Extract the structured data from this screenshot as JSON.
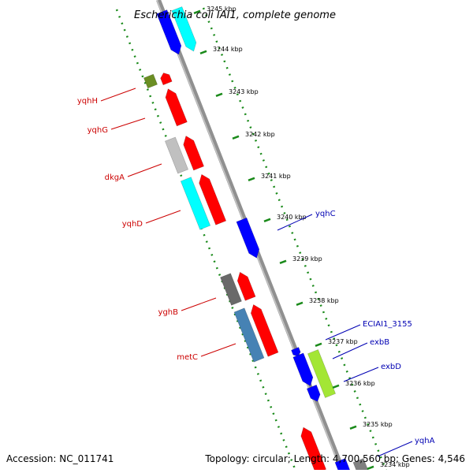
{
  "title": "Escherichia coli IAI1, complete genome",
  "colors": {
    "forward_gene_label": "#cc0000",
    "reverse_gene_label": "#0000b3",
    "tick_ring": "#1a8a1a",
    "backbone": "#808080"
  },
  "footer": {
    "accession": "Accession: NC_011741",
    "topology": "Topology: circular; Length: 4,700,560 bp; Genes: 4,546"
  },
  "ticks": [
    {
      "label": "3245 kbp"
    },
    {
      "label": "3244 kbp"
    },
    {
      "label": "3243 kbp"
    },
    {
      "label": "3242 kbp"
    },
    {
      "label": "3241 kbp"
    },
    {
      "label": "3240 kbp"
    },
    {
      "label": "3239 kbp"
    },
    {
      "label": "3238 kbp"
    },
    {
      "label": "3237 kbp"
    },
    {
      "label": "3236 kbp"
    },
    {
      "label": "3235 kbp"
    },
    {
      "label": "3234 kbp"
    }
  ],
  "gene_labels": [
    {
      "name": "yqhH",
      "strand": "forward"
    },
    {
      "name": "yqhG",
      "strand": "forward"
    },
    {
      "name": "dkgA",
      "strand": "forward"
    },
    {
      "name": "yqhD",
      "strand": "forward"
    },
    {
      "name": "yghB",
      "strand": "forward"
    },
    {
      "name": "metC",
      "strand": "forward"
    },
    {
      "name": "yqhC",
      "strand": "reverse"
    },
    {
      "name": "ECIAI1_3155",
      "strand": "reverse"
    },
    {
      "name": "exbB",
      "strand": "reverse"
    },
    {
      "name": "exbD",
      "strand": "reverse"
    },
    {
      "name": "yqhA",
      "strand": "reverse"
    }
  ]
}
